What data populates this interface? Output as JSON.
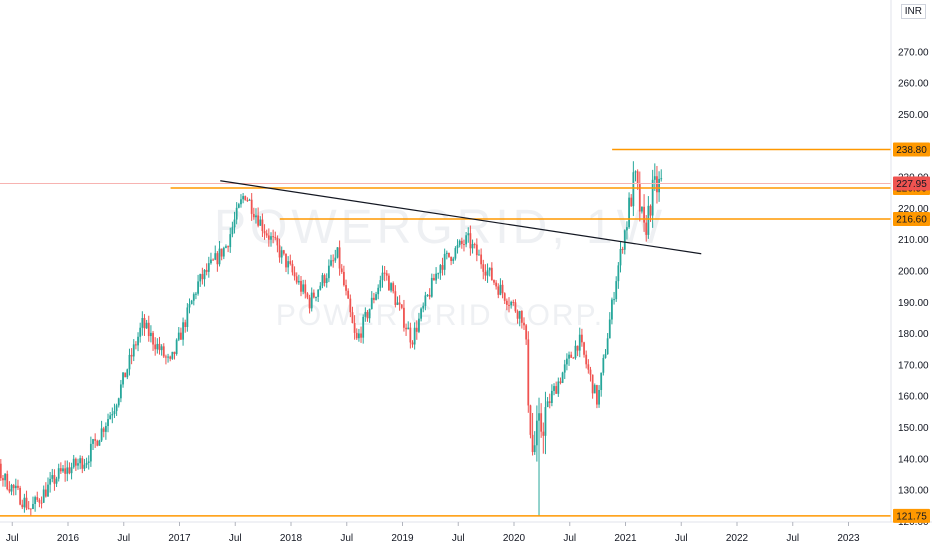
{
  "chart_data": {
    "type": "candlestick",
    "watermark": {
      "symbol": "POWERGRID, 1W",
      "name": "POWER GRID CORP."
    },
    "currency": "INR",
    "ylim": [
      118,
      282
    ],
    "y_ticks": [
      120,
      130,
      140,
      150,
      160,
      170,
      180,
      190,
      200,
      210,
      220,
      230,
      240,
      250,
      260,
      270
    ],
    "x_ticks": [
      "Jul",
      "2016",
      "Jul",
      "2017",
      "Jul",
      "2018",
      "Jul",
      "2019",
      "Jul",
      "2020",
      "Jul",
      "2021",
      "Jul",
      "2022",
      "Jul",
      "2023"
    ],
    "colors": {
      "up": "#26a69a",
      "down": "#ef5350",
      "level": "#ff9800",
      "trendline": "#131722",
      "current": "#ef5350"
    },
    "levels": [
      238.8,
      226.5,
      216.6,
      121.75
    ],
    "current_price": 227.95,
    "trendline": {
      "start": [
        "2017-Jul",
        228.5
      ],
      "end": [
        "2021-Jul",
        205.5
      ]
    },
    "series_anchors": [
      [
        "2015-Mar",
        148
      ],
      [
        "2015-Jun",
        134
      ],
      [
        "2015-Sep",
        124
      ],
      [
        "2015-Dec",
        135
      ],
      [
        "2016-Mar",
        140
      ],
      [
        "2016-Jun",
        157
      ],
      [
        "2016-Sep",
        183
      ],
      [
        "2016-Dec",
        170
      ],
      [
        "2017-Mar",
        196
      ],
      [
        "2017-Jun",
        208
      ],
      [
        "2017-Aug",
        225
      ],
      [
        "2017-Oct",
        214
      ],
      [
        "2017-Dec",
        205
      ],
      [
        "2018-Mar",
        190
      ],
      [
        "2018-Jun",
        205
      ],
      [
        "2018-Aug",
        177
      ],
      [
        "2018-Nov",
        200
      ],
      [
        "2019-Feb",
        178
      ],
      [
        "2019-May",
        202
      ],
      [
        "2019-Aug",
        210
      ],
      [
        "2019-Nov",
        196
      ],
      [
        "2020-Feb",
        185
      ],
      [
        "2020-Mar",
        142
      ],
      [
        "2020-May",
        160
      ],
      [
        "2020-Aug",
        178
      ],
      [
        "2020-Oct",
        158
      ],
      [
        "2020-Dec",
        198
      ],
      [
        "2021-Feb",
        230
      ],
      [
        "2021-Mar",
        212
      ],
      [
        "2021-Apr",
        226
      ],
      [
        "2021-May",
        228
      ]
    ]
  }
}
